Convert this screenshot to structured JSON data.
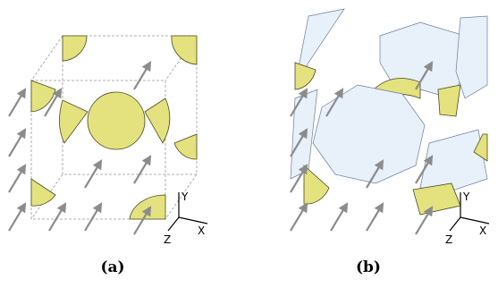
{
  "panels": [
    {
      "label": "(a)",
      "axes": {
        "y": "Y",
        "x": "X",
        "z": "Z"
      }
    },
    {
      "label": "(b)",
      "axes": {
        "y": "Y",
        "x": "X",
        "z": "Z"
      }
    }
  ]
}
